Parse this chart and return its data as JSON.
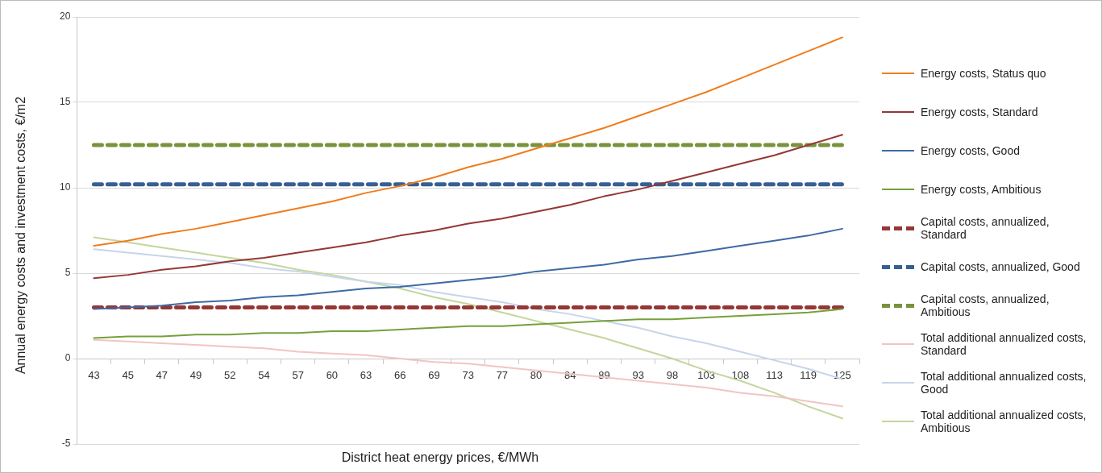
{
  "chart_data": {
    "type": "line",
    "xlabel": "District heat energy prices, €/MWh",
    "ylabel": "Annual energy costs and investment costs, €/m2",
    "categories": [
      "43",
      "45",
      "47",
      "49",
      "52",
      "54",
      "57",
      "60",
      "63",
      "66",
      "69",
      "73",
      "77",
      "80",
      "84",
      "89",
      "93",
      "98",
      "103",
      "108",
      "113",
      "119",
      "125"
    ],
    "ylim": [
      -5,
      20
    ],
    "yticks": [
      -5,
      0,
      5,
      10,
      15,
      20
    ],
    "grid": "y",
    "legend": "right",
    "marker": "none",
    "series": [
      {
        "name": "Energy costs, Status quo",
        "color": "#f07c1c",
        "line_style": "solid",
        "values": [
          6.6,
          6.9,
          7.3,
          7.6,
          8.0,
          8.4,
          8.8,
          9.2,
          9.7,
          10.1,
          10.6,
          11.2,
          11.7,
          12.3,
          12.9,
          13.5,
          14.2,
          14.9,
          15.6,
          16.4,
          17.2,
          18.0,
          18.8
        ]
      },
      {
        "name": "Energy costs, Standard",
        "color": "#953735",
        "line_style": "solid",
        "values": [
          4.7,
          4.9,
          5.2,
          5.4,
          5.7,
          5.9,
          6.2,
          6.5,
          6.8,
          7.2,
          7.5,
          7.9,
          8.2,
          8.6,
          9.0,
          9.5,
          9.9,
          10.4,
          10.9,
          11.4,
          11.9,
          12.5,
          13.1
        ]
      },
      {
        "name": "Energy costs, Good",
        "color": "#3d6aa4",
        "line_style": "solid",
        "values": [
          2.9,
          3.0,
          3.1,
          3.3,
          3.4,
          3.6,
          3.7,
          3.9,
          4.1,
          4.2,
          4.4,
          4.6,
          4.8,
          5.1,
          5.3,
          5.5,
          5.8,
          6.0,
          6.3,
          6.6,
          6.9,
          7.2,
          7.6
        ]
      },
      {
        "name": "Energy costs, Ambitious",
        "color": "#76a03a",
        "line_style": "solid",
        "values": [
          1.2,
          1.3,
          1.3,
          1.4,
          1.4,
          1.5,
          1.5,
          1.6,
          1.6,
          1.7,
          1.8,
          1.9,
          1.9,
          2.0,
          2.1,
          2.2,
          2.3,
          2.3,
          2.4,
          2.5,
          2.6,
          2.7,
          2.9
        ]
      },
      {
        "name": "Capital costs, annualized, Standard",
        "color": "#953735",
        "line_style": "dashed",
        "values": [
          3.0,
          3.0,
          3.0,
          3.0,
          3.0,
          3.0,
          3.0,
          3.0,
          3.0,
          3.0,
          3.0,
          3.0,
          3.0,
          3.0,
          3.0,
          3.0,
          3.0,
          3.0,
          3.0,
          3.0,
          3.0,
          3.0,
          3.0
        ]
      },
      {
        "name": "Capital costs, annualized, Good",
        "color": "#376092",
        "line_style": "dashed",
        "values": [
          10.2,
          10.2,
          10.2,
          10.2,
          10.2,
          10.2,
          10.2,
          10.2,
          10.2,
          10.2,
          10.2,
          10.2,
          10.2,
          10.2,
          10.2,
          10.2,
          10.2,
          10.2,
          10.2,
          10.2,
          10.2,
          10.2,
          10.2
        ]
      },
      {
        "name": "Capital costs, annualized, Ambitious",
        "color": "#77933c",
        "line_style": "dashed",
        "values": [
          12.5,
          12.5,
          12.5,
          12.5,
          12.5,
          12.5,
          12.5,
          12.5,
          12.5,
          12.5,
          12.5,
          12.5,
          12.5,
          12.5,
          12.5,
          12.5,
          12.5,
          12.5,
          12.5,
          12.5,
          12.5,
          12.5,
          12.5
        ]
      },
      {
        "name": "Total additional annualized costs, Standard",
        "color": "#f2c4c4",
        "line_style": "solid",
        "values": [
          1.1,
          1.0,
          0.9,
          0.8,
          0.7,
          0.6,
          0.4,
          0.3,
          0.2,
          0.0,
          -0.2,
          -0.3,
          -0.5,
          -0.7,
          -0.9,
          -1.1,
          -1.3,
          -1.5,
          -1.7,
          -2.0,
          -2.2,
          -2.5,
          -2.8
        ]
      },
      {
        "name": "Total additional annualized costs, Good",
        "color": "#c6d5ea",
        "line_style": "solid",
        "values": [
          6.4,
          6.2,
          6.0,
          5.8,
          5.6,
          5.3,
          5.1,
          4.8,
          4.5,
          4.3,
          3.9,
          3.6,
          3.3,
          2.9,
          2.6,
          2.2,
          1.8,
          1.3,
          0.9,
          0.4,
          -0.1,
          -0.6,
          -1.2
        ]
      },
      {
        "name": "Total additional annualized costs, Ambitious",
        "color": "#c3d69b",
        "line_style": "solid",
        "values": [
          7.1,
          6.8,
          6.5,
          6.2,
          5.9,
          5.6,
          5.2,
          4.9,
          4.5,
          4.1,
          3.6,
          3.2,
          2.7,
          2.2,
          1.7,
          1.2,
          0.6,
          0.0,
          -0.7,
          -1.3,
          -2.0,
          -2.8,
          -3.5
        ]
      }
    ]
  }
}
